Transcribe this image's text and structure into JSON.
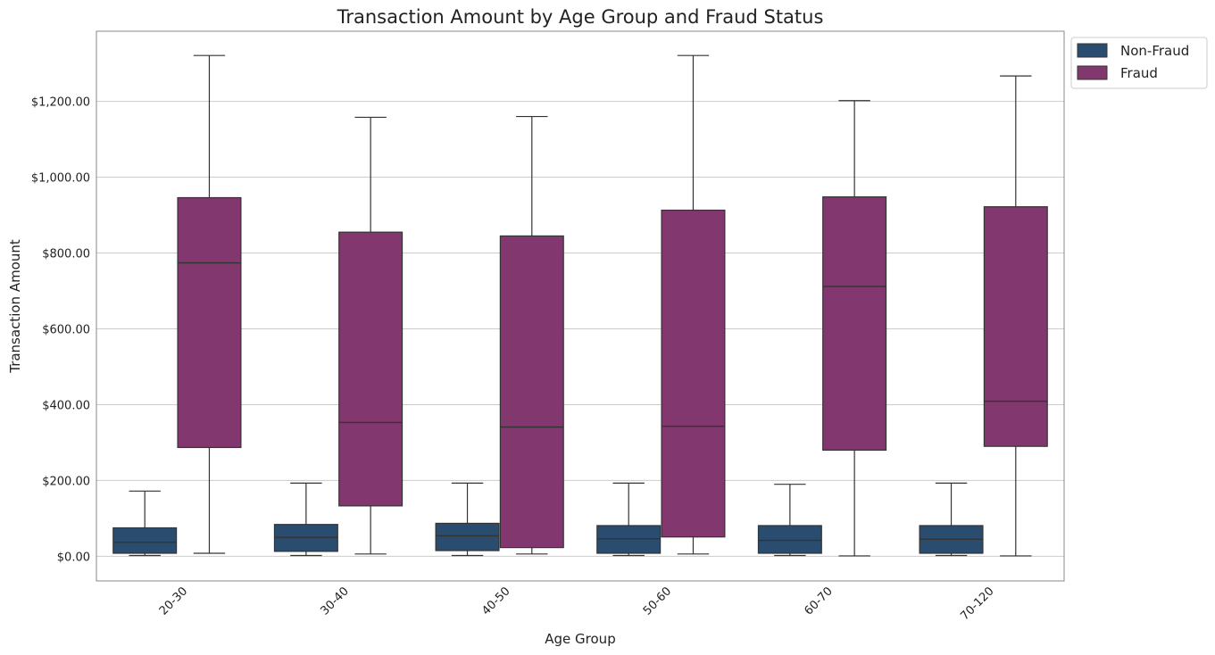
{
  "chart_data": {
    "type": "box",
    "title": "Transaction Amount by Age Group and Fraud Status",
    "xlabel": "Age Group",
    "ylabel": "Transaction Amount",
    "ylim": [
      -65,
      1385
    ],
    "yticks": [
      0,
      200,
      400,
      600,
      800,
      1000,
      1200
    ],
    "ytick_labels": [
      "$0.00",
      "$200.00",
      "$400.00",
      "$600.00",
      "$800.00",
      "$1,000.00",
      "$1,200.00"
    ],
    "categories": [
      "20-30",
      "30-40",
      "40-50",
      "50-60",
      "60-70",
      "70-120"
    ],
    "grid": "horizontal",
    "legend_position": "upper-right-outside",
    "series": [
      {
        "name": "Non-Fraud",
        "color": "#2a4d6f",
        "boxes": [
          {
            "whislo": 2,
            "q1": 8,
            "median": 37,
            "q3": 75,
            "whishi": 172
          },
          {
            "whislo": 2,
            "q1": 13,
            "median": 50,
            "q3": 84,
            "whishi": 193
          },
          {
            "whislo": 2,
            "q1": 15,
            "median": 54,
            "q3": 87,
            "whishi": 193
          },
          {
            "whislo": 2,
            "q1": 8,
            "median": 46,
            "q3": 81,
            "whishi": 193
          },
          {
            "whislo": 2,
            "q1": 8,
            "median": 42,
            "q3": 81,
            "whishi": 190
          },
          {
            "whislo": 2,
            "q1": 8,
            "median": 45,
            "q3": 81,
            "whishi": 193
          }
        ]
      },
      {
        "name": "Fraud",
        "color": "#82386e",
        "boxes": [
          {
            "whislo": 8,
            "q1": 287,
            "median": 774,
            "q3": 946,
            "whishi": 1321
          },
          {
            "whislo": 6,
            "q1": 133,
            "median": 353,
            "q3": 855,
            "whishi": 1158
          },
          {
            "whislo": 6,
            "q1": 23,
            "median": 341,
            "q3": 845,
            "whishi": 1160
          },
          {
            "whislo": 6,
            "q1": 51,
            "median": 343,
            "q3": 913,
            "whishi": 1321
          },
          {
            "whislo": 1,
            "q1": 280,
            "median": 712,
            "q3": 948,
            "whishi": 1202
          },
          {
            "whislo": 1,
            "q1": 290,
            "median": 409,
            "q3": 922,
            "whishi": 1267
          }
        ]
      }
    ]
  }
}
